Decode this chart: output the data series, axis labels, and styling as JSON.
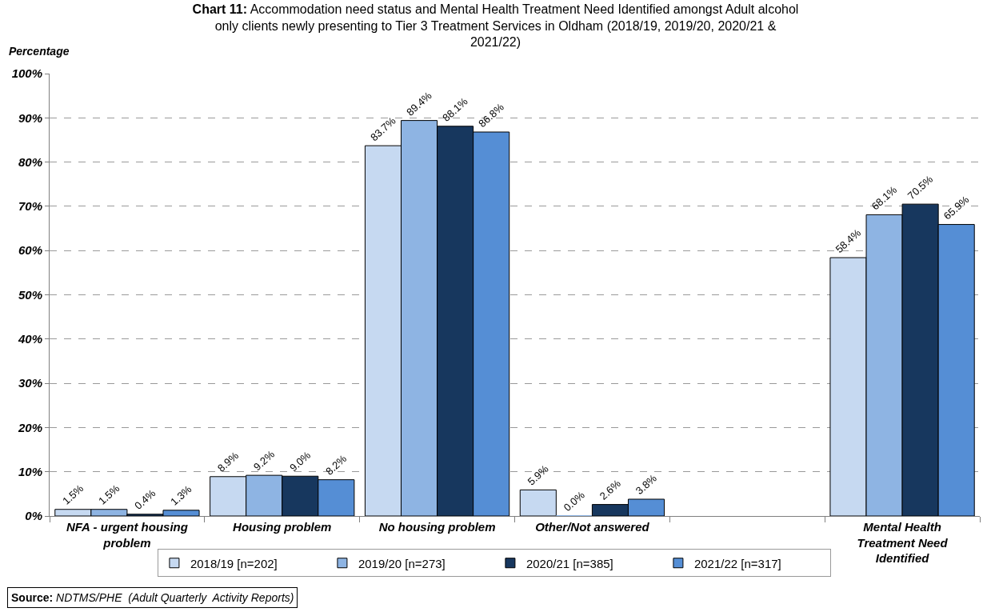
{
  "chart_data": {
    "type": "bar",
    "title": "Chart 11: Accommodation need status and Mental Health Treatment Need Identified amongst Adult alcohol only clients newly presenting to Tier 3 Treatment Services in Oldham (2018/19, 2019/20, 2020/21 & 2021/22)",
    "ylabel": "Percentage",
    "categories": [
      "NFA - urgent housing problem",
      "Housing problem",
      "No housing problem",
      "Other/Not answered",
      null,
      "Mental Health Treatment Need Identified"
    ],
    "series": [
      {
        "name": "2018/19 [n=202]",
        "color": "#c6d9f1",
        "values": [
          1.5,
          8.9,
          83.7,
          5.9,
          null,
          58.4
        ],
        "value_labels": [
          "1.5%",
          "8.9%",
          "83.7%",
          "5.9%",
          null,
          "58.4%"
        ]
      },
      {
        "name": "2019/20 [n=273]",
        "color": "#8eb4e3",
        "values": [
          1.5,
          9.2,
          89.4,
          0.0,
          null,
          68.1
        ],
        "value_labels": [
          "1.5%",
          "9.2%",
          "89.4%",
          "0.0%",
          null,
          "68.1%"
        ]
      },
      {
        "name": "2020/21 [n=385]",
        "color": "#17375e",
        "values": [
          0.4,
          9.0,
          88.1,
          2.6,
          null,
          70.5
        ],
        "value_labels": [
          "0.4%",
          "9.0%",
          "88.1%",
          "2.6%",
          null,
          "70.5%"
        ]
      },
      {
        "name": "2021/22 [n=317]",
        "color": "#558ed5",
        "values": [
          1.3,
          8.2,
          86.8,
          3.8,
          null,
          65.9
        ],
        "value_labels": [
          "1.3%",
          "8.2%",
          "86.8%",
          "3.8%",
          null,
          "65.9%"
        ]
      }
    ],
    "ylim": [
      0,
      100
    ],
    "yticks": [
      {
        "value": 0,
        "label": "0%"
      },
      {
        "value": 10,
        "label": "10%"
      },
      {
        "value": 20,
        "label": "20%"
      },
      {
        "value": 30,
        "label": "30%"
      },
      {
        "value": 40,
        "label": "40%"
      },
      {
        "value": 50,
        "label": "50%"
      },
      {
        "value": 60,
        "label": "60%"
      },
      {
        "value": 70,
        "label": "70%"
      },
      {
        "value": 80,
        "label": "80%"
      },
      {
        "value": 90,
        "label": "90%"
      },
      {
        "value": 100,
        "label": "100%"
      }
    ],
    "grid": "y",
    "legend": "bottom",
    "annotations": [
      "Source: NDTMS/PHE  (Adult Quarterly  Activity Reports)"
    ]
  }
}
